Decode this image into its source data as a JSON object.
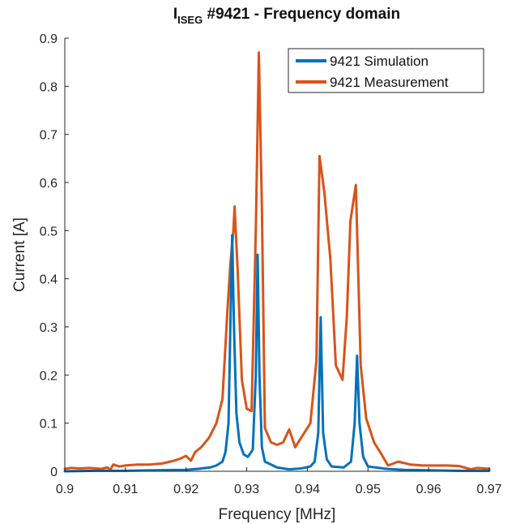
{
  "chart_data": {
    "type": "line",
    "title_prefix": "I",
    "title_subscript": "ISEG",
    "title_rest": " #9421 - Frequency domain",
    "xlabel": "Frequency [MHz]",
    "ylabel": "Current [A]",
    "xlim": [
      0.9,
      0.97
    ],
    "ylim": [
      0,
      0.9
    ],
    "xticks": [
      0.9,
      0.91,
      0.92,
      0.93,
      0.94,
      0.95,
      0.96,
      0.97
    ],
    "xtick_labels": [
      "0.9",
      "0.91",
      "0.92",
      "0.93",
      "0.94",
      "0.95",
      "0.96",
      "0.97"
    ],
    "yticks": [
      0,
      0.1,
      0.2,
      0.3,
      0.4,
      0.5,
      0.6,
      0.7,
      0.8,
      0.9
    ],
    "ytick_labels": [
      "0",
      "0.1",
      "0.2",
      "0.3",
      "0.4",
      "0.5",
      "0.6",
      "0.7",
      "0.8",
      "0.9"
    ],
    "grid": false,
    "legend_position": "top-right",
    "series": [
      {
        "name": "9421 Simulation",
        "color": "#0072BD",
        "points": [
          [
            0.9,
            0.0
          ],
          [
            0.905,
            0.001
          ],
          [
            0.91,
            0.001
          ],
          [
            0.915,
            0.002
          ],
          [
            0.92,
            0.003
          ],
          [
            0.922,
            0.005
          ],
          [
            0.924,
            0.008
          ],
          [
            0.925,
            0.012
          ],
          [
            0.926,
            0.02
          ],
          [
            0.9265,
            0.04
          ],
          [
            0.927,
            0.1
          ],
          [
            0.9273,
            0.3
          ],
          [
            0.9276,
            0.49
          ],
          [
            0.9279,
            0.3
          ],
          [
            0.9283,
            0.12
          ],
          [
            0.9288,
            0.06
          ],
          [
            0.9295,
            0.035
          ],
          [
            0.9302,
            0.03
          ],
          [
            0.931,
            0.045
          ],
          [
            0.9315,
            0.2
          ],
          [
            0.9318,
            0.45
          ],
          [
            0.9321,
            0.2
          ],
          [
            0.9325,
            0.05
          ],
          [
            0.933,
            0.02
          ],
          [
            0.935,
            0.008
          ],
          [
            0.937,
            0.004
          ],
          [
            0.939,
            0.006
          ],
          [
            0.9405,
            0.01
          ],
          [
            0.9412,
            0.02
          ],
          [
            0.9418,
            0.08
          ],
          [
            0.9422,
            0.32
          ],
          [
            0.9426,
            0.08
          ],
          [
            0.9432,
            0.025
          ],
          [
            0.944,
            0.01
          ],
          [
            0.946,
            0.008
          ],
          [
            0.9472,
            0.02
          ],
          [
            0.9478,
            0.1
          ],
          [
            0.9482,
            0.24
          ],
          [
            0.9486,
            0.1
          ],
          [
            0.9492,
            0.03
          ],
          [
            0.95,
            0.01
          ],
          [
            0.953,
            0.005
          ],
          [
            0.956,
            0.003
          ],
          [
            0.96,
            0.002
          ],
          [
            0.965,
            0.001
          ],
          [
            0.97,
            0.001
          ]
        ]
      },
      {
        "name": "9421 Measurement",
        "color": "#D95319",
        "points": [
          [
            0.9,
            0.005
          ],
          [
            0.901,
            0.007
          ],
          [
            0.9025,
            0.006
          ],
          [
            0.904,
            0.007
          ],
          [
            0.906,
            0.005
          ],
          [
            0.907,
            0.008
          ],
          [
            0.9075,
            0.003
          ],
          [
            0.908,
            0.014
          ],
          [
            0.909,
            0.01
          ],
          [
            0.91,
            0.012
          ],
          [
            0.912,
            0.014
          ],
          [
            0.914,
            0.014
          ],
          [
            0.916,
            0.016
          ],
          [
            0.917,
            0.019
          ],
          [
            0.918,
            0.022
          ],
          [
            0.919,
            0.026
          ],
          [
            0.92,
            0.032
          ],
          [
            0.9208,
            0.022
          ],
          [
            0.9215,
            0.04
          ],
          [
            0.9225,
            0.05
          ],
          [
            0.9238,
            0.07
          ],
          [
            0.925,
            0.1
          ],
          [
            0.926,
            0.15
          ],
          [
            0.9268,
            0.33
          ],
          [
            0.9273,
            0.43
          ],
          [
            0.9278,
            0.5
          ],
          [
            0.928,
            0.55
          ],
          [
            0.9285,
            0.42
          ],
          [
            0.9292,
            0.19
          ],
          [
            0.93,
            0.13
          ],
          [
            0.9308,
            0.125
          ],
          [
            0.9315,
            0.5
          ],
          [
            0.932,
            0.87
          ],
          [
            0.9325,
            0.55
          ],
          [
            0.933,
            0.09
          ],
          [
            0.934,
            0.06
          ],
          [
            0.935,
            0.055
          ],
          [
            0.936,
            0.06
          ],
          [
            0.937,
            0.087
          ],
          [
            0.938,
            0.05
          ],
          [
            0.939,
            0.07
          ],
          [
            0.9405,
            0.1
          ],
          [
            0.9415,
            0.23
          ],
          [
            0.942,
            0.655
          ],
          [
            0.9428,
            0.58
          ],
          [
            0.9438,
            0.44
          ],
          [
            0.9447,
            0.22
          ],
          [
            0.9458,
            0.19
          ],
          [
            0.9465,
            0.32
          ],
          [
            0.9471,
            0.52
          ],
          [
            0.948,
            0.595
          ],
          [
            0.9488,
            0.22
          ],
          [
            0.9497,
            0.11
          ],
          [
            0.951,
            0.06
          ],
          [
            0.952,
            0.04
          ],
          [
            0.9533,
            0.012
          ],
          [
            0.955,
            0.02
          ],
          [
            0.957,
            0.014
          ],
          [
            0.959,
            0.012
          ],
          [
            0.961,
            0.012
          ],
          [
            0.963,
            0.012
          ],
          [
            0.965,
            0.011
          ],
          [
            0.967,
            0.004
          ],
          [
            0.968,
            0.007
          ],
          [
            0.97,
            0.005
          ]
        ]
      }
    ]
  }
}
